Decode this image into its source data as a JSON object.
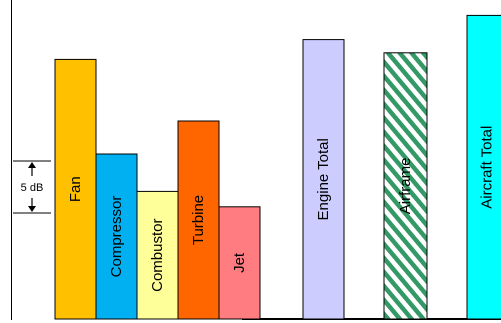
{
  "chart_data": {
    "type": "bar",
    "title": "",
    "xlabel": "",
    "ylabel": "",
    "grid": false,
    "categories": [
      "Fan",
      "Compressor",
      "Combustor",
      "Turbine",
      "Jet",
      "Engine Total",
      "Airframe",
      "Aircraft Total"
    ],
    "values": [
      11.8,
      7.5,
      5.8,
      9.0,
      5.1,
      12.7,
      12.1,
      13.8
    ],
    "colors": [
      "#ffc000",
      "#00b0f0",
      "#ffff99",
      "#ff6600",
      "#ff7c80",
      "#ccccff",
      "#339966",
      "#00ffff"
    ],
    "patterns": [
      "solid",
      "solid",
      "solid",
      "solid",
      "solid",
      "solid",
      "hatched",
      "solid"
    ],
    "ylim": [
      0,
      14.5
    ],
    "scale_bar": {
      "label": "5 dB",
      "value": 5
    }
  }
}
